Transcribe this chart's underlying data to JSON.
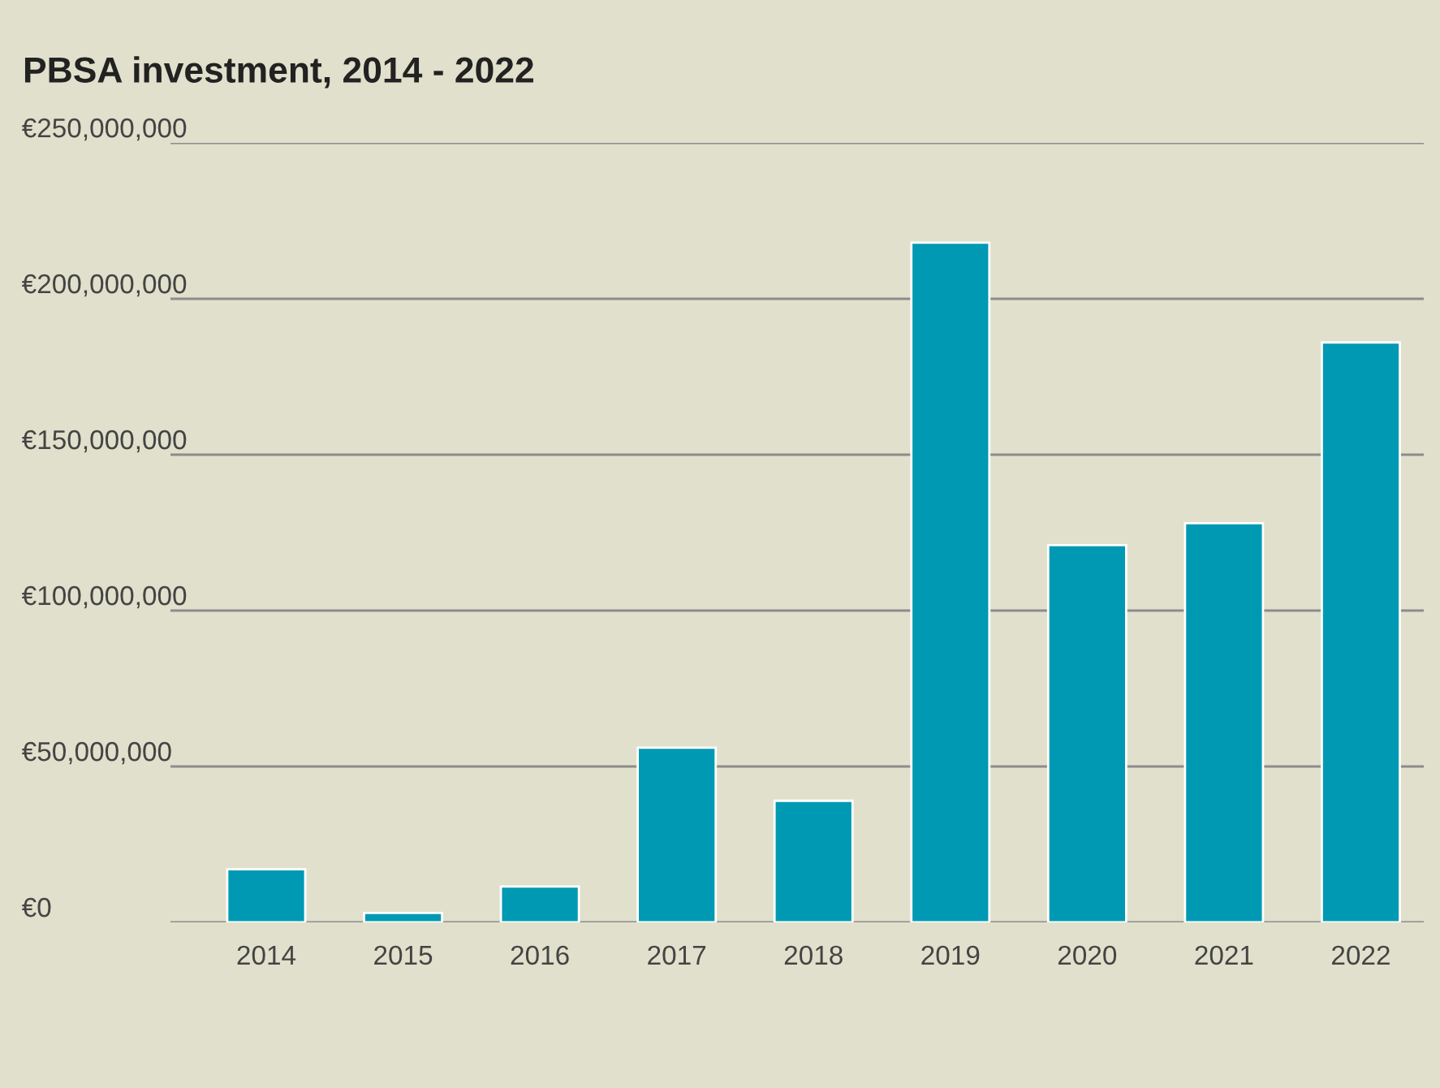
{
  "chart_data": {
    "type": "bar",
    "title": "PBSA investment, 2014 - 2022",
    "categories": [
      "2014",
      "2015",
      "2016",
      "2017",
      "2018",
      "2019",
      "2020",
      "2021",
      "2022"
    ],
    "values": [
      17000000,
      3000000,
      11500000,
      56000000,
      39000000,
      218000000,
      121000000,
      128000000,
      186000000
    ],
    "color": "#0099b3",
    "ylim": [
      0,
      250000000
    ],
    "yticks": [
      {
        "value": 0,
        "label": "€0"
      },
      {
        "value": 50000000,
        "label": "€50,000,000"
      },
      {
        "value": 100000000,
        "label": "€100,000,000"
      },
      {
        "value": 150000000,
        "label": "€150,000,000"
      },
      {
        "value": 200000000,
        "label": "€200,000,000"
      },
      {
        "value": 250000000,
        "label": "€250,000,000"
      }
    ],
    "grid": "y",
    "legend": false
  }
}
